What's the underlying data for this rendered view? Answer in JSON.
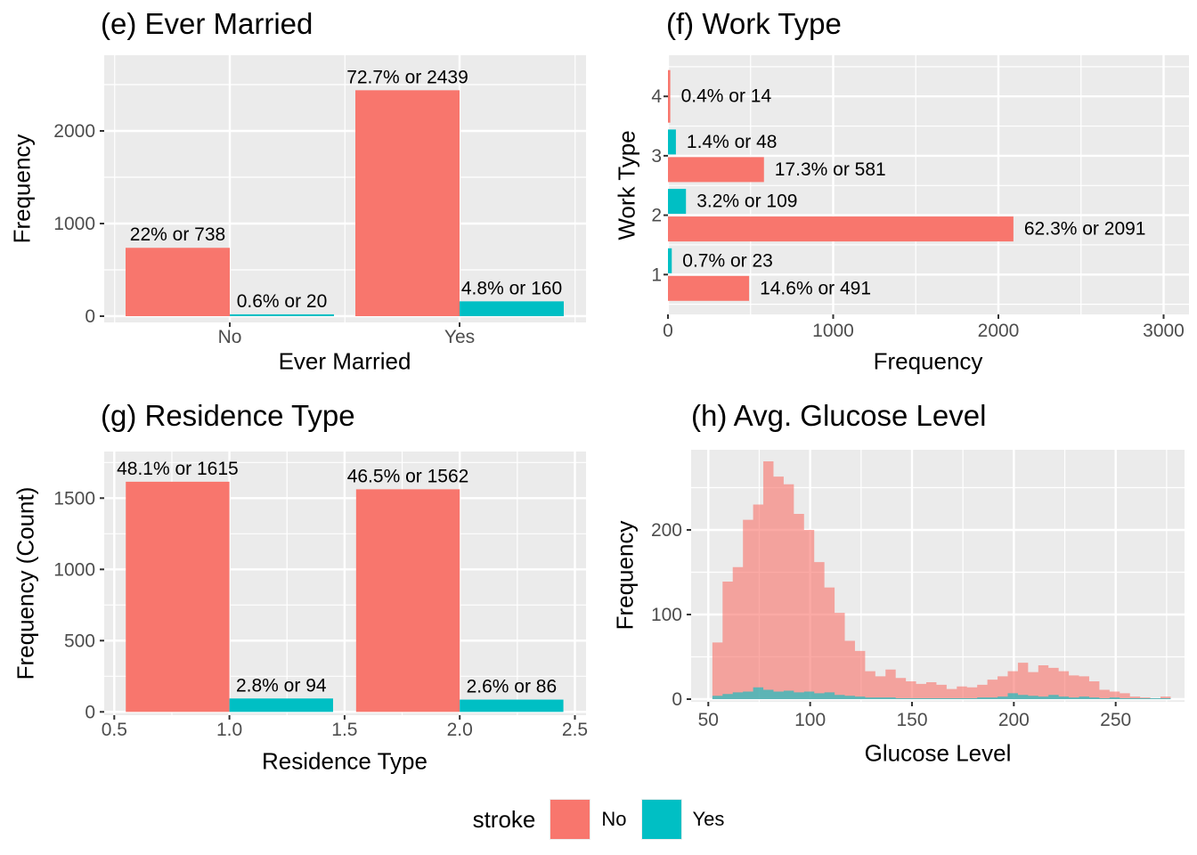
{
  "styles": {
    "panel_bg": "#EBEBEB",
    "grid_color": "#FFFFFF",
    "tick_mark_color": "#333333",
    "tick_label_color": "#4D4D4D",
    "text_color": "#000000",
    "color_no": "#F8766D",
    "color_yes": "#00BFC4",
    "histogram_alpha": 0.62
  },
  "legend": {
    "title": "stroke",
    "items": [
      {
        "label": "No",
        "color": "#F8766D"
      },
      {
        "label": "Yes",
        "color": "#00BFC4"
      }
    ]
  },
  "chart_data": [
    {
      "id": "e",
      "type": "bar",
      "title": "(e) Ever Married",
      "xlabel": "Ever Married",
      "ylabel": "Frequency",
      "categories": [
        "No",
        "Yes"
      ],
      "series": [
        {
          "name": "No",
          "color": "#F8766D",
          "values": [
            738,
            2439
          ],
          "labels": [
            "22% or 738",
            "72.7% or 2439"
          ]
        },
        {
          "name": "Yes",
          "color": "#00BFC4",
          "values": [
            20,
            160
          ],
          "labels": [
            "0.6% or 20",
            "4.8% or 160"
          ]
        }
      ],
      "xticks": [
        "No",
        "Yes"
      ],
      "yticks": [
        "0",
        "1000",
        "2000"
      ],
      "ytick_values": [
        0,
        1000,
        2000
      ],
      "ylim": [
        0,
        2815
      ],
      "grid": true,
      "legend_position": "bottom-shared"
    },
    {
      "id": "f",
      "type": "bar-horizontal",
      "title": "(f) Work Type",
      "xlabel": "Frequency",
      "ylabel": "Work Type",
      "categories": [
        "1",
        "2",
        "3",
        "4"
      ],
      "series": [
        {
          "name": "No",
          "color": "#F8766D",
          "values": [
            491,
            2091,
            581,
            14
          ],
          "labels": [
            "14.6% or 491",
            "62.3% or 2091",
            "17.3% or 581",
            "0.4% or 14"
          ]
        },
        {
          "name": "Yes",
          "color": "#00BFC4",
          "values": [
            23,
            109,
            48,
            null
          ],
          "labels": [
            "0.7% or 23",
            "3.2% or 109",
            "1.4% or 48",
            null
          ]
        }
      ],
      "xticks": [
        "0",
        "1000",
        "2000",
        "3000"
      ],
      "xtick_values": [
        0,
        1000,
        2000,
        3000
      ],
      "yticks": [
        "1",
        "2",
        "3",
        "4"
      ],
      "xlim": [
        0,
        3150
      ],
      "grid": true
    },
    {
      "id": "g",
      "type": "bar",
      "title": "(g) Residence Type",
      "xlabel": "Residence Type",
      "ylabel": "Frequency (Count)",
      "categories": [
        "1",
        "2"
      ],
      "category_positions": [
        1.0,
        2.0
      ],
      "series": [
        {
          "name": "No",
          "color": "#F8766D",
          "values": [
            1615,
            1562
          ],
          "labels": [
            "48.1% or 1615",
            "46.5% or 1562"
          ]
        },
        {
          "name": "Yes",
          "color": "#00BFC4",
          "values": [
            94,
            86
          ],
          "labels": [
            "2.8% or 94",
            "2.6% or 86"
          ]
        }
      ],
      "xticks": [
        "0.5",
        "1.0",
        "1.5",
        "2.0",
        "2.5"
      ],
      "xtick_values": [
        0.5,
        1.0,
        1.5,
        2.0,
        2.5
      ],
      "yticks": [
        "0",
        "500",
        "1000",
        "1500"
      ],
      "ytick_values": [
        0,
        500,
        1000,
        1500
      ],
      "xlim": [
        0.456,
        2.546
      ],
      "ylim": [
        0,
        1830
      ],
      "grid": true
    },
    {
      "id": "h",
      "type": "histogram",
      "title": "(h) Avg. Glucose Level",
      "xlabel": "Glucose Level",
      "ylabel": "Frequency",
      "bin_start": 52,
      "bin_width": 5,
      "series": [
        {
          "name": "No",
          "color": "#F8766D",
          "values": [
            67,
            139,
            156,
            212,
            230,
            281,
            263,
            254,
            219,
            200,
            162,
            132,
            102,
            69,
            57,
            33,
            27,
            35,
            25,
            21,
            18,
            20,
            17,
            12,
            15,
            14,
            17,
            23,
            27,
            33,
            43,
            32,
            40,
            37,
            33,
            28,
            27,
            21,
            11,
            9,
            7,
            3,
            2,
            1,
            3
          ]
        },
        {
          "name": "Yes",
          "color": "#00BFC4",
          "values": [
            4,
            6,
            8,
            9,
            14,
            11,
            9,
            10,
            8,
            9,
            7,
            8,
            5,
            4,
            3,
            2,
            2,
            2,
            1,
            1,
            1,
            1,
            1,
            1,
            1,
            1,
            2,
            2,
            3,
            7,
            5,
            4,
            3,
            5,
            3,
            2,
            3,
            2,
            1,
            2,
            1,
            1,
            1,
            1,
            1
          ]
        }
      ],
      "xticks": [
        "50",
        "100",
        "150",
        "200",
        "250"
      ],
      "xtick_values": [
        50,
        100,
        150,
        200,
        250
      ],
      "yticks": [
        "0",
        "100",
        "200"
      ],
      "ytick_values": [
        0,
        100,
        200
      ],
      "xlim": [
        41,
        284
      ],
      "ylim": [
        0,
        297
      ],
      "grid": true
    }
  ]
}
